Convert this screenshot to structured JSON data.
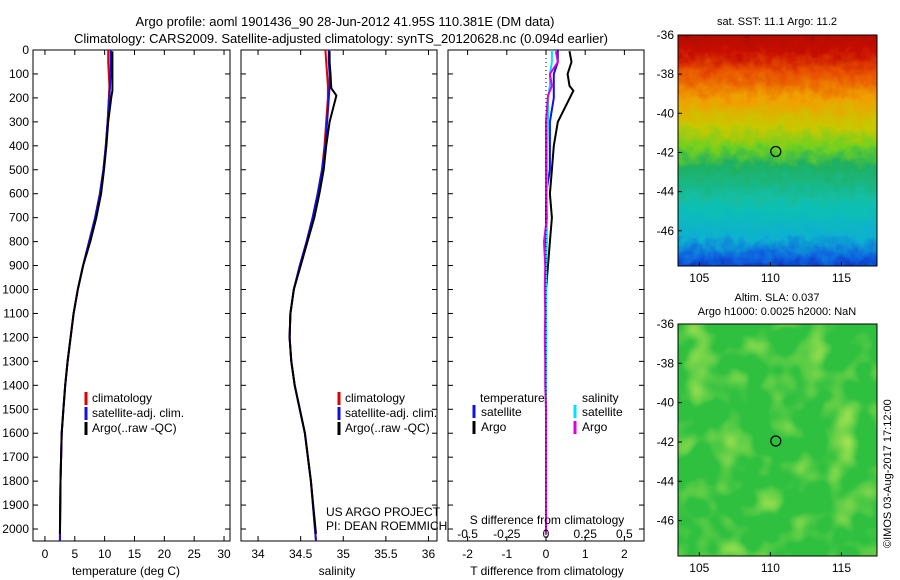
{
  "header": {
    "line1": "Argo profile: aoml 1901436_90 28-Jun-2012 41.95S 110.381E (DM data)",
    "line2": "Climatology: CARS2009. Satellite-adjusted climatology: synTS_20120628.nc (0.094d earlier)"
  },
  "colors": {
    "climatology": "#e00000",
    "satellite": "#1010e0",
    "argo": "#000000",
    "satellite_salinity": "#00e0ff",
    "argo_salinity": "#e000e0"
  },
  "chart_data": [
    {
      "type": "line",
      "panel": "temperature",
      "xlabel": "temperature (deg C)",
      "ylabel": "",
      "xlim": [
        -2,
        31
      ],
      "ylim": [
        2050,
        0
      ],
      "y_reversed": true,
      "xticks": [
        "0",
        "5",
        "10",
        "15",
        "20",
        "25",
        "30"
      ],
      "yticks": [
        "0",
        "100",
        "200",
        "300",
        "400",
        "500",
        "600",
        "700",
        "800",
        "900",
        "1000",
        "1100",
        "1200",
        "1300",
        "1400",
        "1500",
        "1600",
        "1700",
        "1800",
        "1900",
        "2000"
      ],
      "legend": {
        "position": "lower-center",
        "entries": [
          "climatology",
          "satellite-adj. clim.",
          "Argo(..raw -QC)"
        ]
      },
      "series": [
        {
          "name": "climatology",
          "color": "#e00000",
          "x": [
            10.6,
            10.6,
            10.7,
            10.8,
            10.7,
            10.5,
            10.2,
            9.8,
            9.2,
            8.4,
            7.4,
            6.4,
            5.5,
            4.8,
            4.3,
            3.8,
            3.4,
            3.1,
            2.8,
            2.6,
            2.5
          ],
          "y": [
            0,
            50,
            100,
            150,
            200,
            300,
            400,
            500,
            600,
            700,
            800,
            900,
            1000,
            1100,
            1200,
            1300,
            1400,
            1500,
            1600,
            1800,
            2050
          ]
        },
        {
          "name": "satellite-adj. clim.",
          "color": "#1010e0",
          "x": [
            11.0,
            11.0,
            11.0,
            10.9,
            10.8,
            10.5,
            10.2,
            9.8,
            9.2,
            8.4,
            7.4,
            6.4,
            5.5,
            4.8,
            4.3,
            3.8,
            3.4,
            3.1,
            2.8,
            2.6,
            2.5
          ],
          "y": [
            0,
            50,
            100,
            150,
            200,
            300,
            400,
            500,
            600,
            700,
            800,
            900,
            1000,
            1100,
            1200,
            1300,
            1400,
            1500,
            1600,
            1800,
            2050
          ]
        },
        {
          "name": "Argo(..raw -QC)",
          "color": "#000000",
          "x": [
            11.3,
            11.3,
            11.3,
            11.3,
            11.1,
            10.6,
            10.3,
            9.9,
            9.4,
            8.6,
            7.6,
            6.4,
            5.5,
            4.8,
            4.3,
            3.8,
            3.4,
            3.1,
            2.8,
            2.6,
            2.5
          ],
          "y": [
            5,
            50,
            100,
            170,
            200,
            300,
            400,
            500,
            600,
            700,
            800,
            900,
            1000,
            1100,
            1200,
            1300,
            1400,
            1500,
            1600,
            1800,
            2020
          ]
        }
      ]
    },
    {
      "type": "line",
      "panel": "salinity",
      "xlabel": "salinity",
      "ylabel": "",
      "xlim": [
        33.8,
        36.1
      ],
      "ylim": [
        2050,
        0
      ],
      "y_reversed": true,
      "xticks": [
        "34",
        "34.5",
        "35",
        "35.5",
        "36"
      ],
      "legend": {
        "position": "lower-right",
        "entries": [
          "climatology",
          "satellite-adj. clim.",
          "Argo(..raw -QC)"
        ]
      },
      "annotations": [
        "US ARGO PROJECT",
        "PI: DEAN ROEMMICH"
      ],
      "series": [
        {
          "name": "climatology",
          "color": "#e00000",
          "x": [
            34.79,
            34.8,
            34.81,
            34.82,
            34.82,
            34.8,
            34.78,
            34.75,
            34.7,
            34.64,
            34.57,
            34.49,
            34.42,
            34.38,
            34.37,
            34.39,
            34.43,
            34.49,
            34.55,
            34.62,
            34.68
          ],
          "y": [
            0,
            50,
            100,
            150,
            200,
            300,
            400,
            500,
            600,
            700,
            800,
            900,
            1000,
            1100,
            1200,
            1300,
            1400,
            1500,
            1600,
            1800,
            2050
          ]
        },
        {
          "name": "satellite-adj. clim.",
          "color": "#1010e0",
          "x": [
            34.83,
            34.83,
            34.84,
            34.84,
            34.83,
            34.81,
            34.79,
            34.75,
            34.7,
            34.64,
            34.57,
            34.49,
            34.42,
            34.38,
            34.37,
            34.39,
            34.43,
            34.49,
            34.55,
            34.62,
            34.68
          ],
          "y": [
            0,
            50,
            100,
            150,
            200,
            300,
            400,
            500,
            600,
            700,
            800,
            900,
            1000,
            1100,
            1200,
            1300,
            1400,
            1500,
            1600,
            1800,
            2050
          ]
        },
        {
          "name": "Argo(..raw -QC)",
          "color": "#000000",
          "x": [
            34.84,
            34.84,
            34.85,
            34.86,
            34.92,
            34.84,
            34.8,
            34.77,
            34.72,
            34.66,
            34.58,
            34.5,
            34.42,
            34.38,
            34.37,
            34.39,
            34.43,
            34.49,
            34.55,
            34.62,
            34.68
          ],
          "y": [
            5,
            50,
            100,
            160,
            190,
            300,
            400,
            500,
            600,
            700,
            800,
            900,
            1000,
            1100,
            1200,
            1300,
            1400,
            1500,
            1600,
            1800,
            2020
          ]
        }
      ]
    },
    {
      "type": "line",
      "panel": "difference",
      "xlabel": "T difference from climatology",
      "top_label": "S difference from climatology",
      "xlim": [
        -2.5,
        2.5
      ],
      "ylim": [
        2050,
        0
      ],
      "y_reversed": true,
      "xticks": [
        "-2",
        "-1",
        "0",
        "1",
        "2"
      ],
      "top_xticks": [
        "-0.5",
        "-0.25",
        "0",
        "0.25",
        "0.5"
      ],
      "legend": {
        "position": "lower-center",
        "temperature_title": "temperature",
        "salinity_title": "salinity",
        "entries": [
          "satellite",
          "Argo",
          "satellite",
          "Argo"
        ]
      },
      "series": [
        {
          "name": "satellite",
          "group": "temperature",
          "color": "#1010e0",
          "x": [
            0.3,
            0.3,
            0.2,
            0.2,
            0.2,
            0.1,
            0.1,
            0.1,
            0.0,
            0.0,
            0.0,
            0.0,
            0.0,
            0.0,
            0.0,
            0.0,
            0.0,
            0.0,
            0.0,
            0.0
          ],
          "y": [
            0,
            50,
            100,
            150,
            200,
            300,
            400,
            500,
            600,
            700,
            800,
            900,
            1000,
            1100,
            1200,
            1300,
            1400,
            1500,
            1800,
            2020
          ]
        },
        {
          "name": "Argo",
          "group": "temperature",
          "color": "#000000",
          "x": [
            0.6,
            0.65,
            0.55,
            0.6,
            0.7,
            0.3,
            0.2,
            0.15,
            0.1,
            0.15,
            0.1,
            0.05,
            0.0,
            0.0,
            0.0,
            0.0,
            0.0,
            0.0,
            0.0,
            0.0
          ],
          "y": [
            5,
            50,
            100,
            150,
            170,
            300,
            400,
            500,
            600,
            700,
            800,
            900,
            1000,
            1100,
            1200,
            1300,
            1400,
            1500,
            1800,
            2020
          ]
        },
        {
          "name": "satellite",
          "group": "salinity",
          "color": "#00e0ff",
          "x": [
            0.15,
            0.15,
            0.1,
            0.1,
            0.05,
            0.05,
            0.03,
            0.03,
            0.02,
            0.02,
            0.02,
            0.0,
            0.0,
            0.0,
            0.0,
            0.0,
            0.0,
            0.0,
            0.0,
            0.0
          ],
          "y": [
            0,
            50,
            100,
            150,
            200,
            300,
            400,
            500,
            600,
            700,
            800,
            900,
            1000,
            1100,
            1200,
            1300,
            1400,
            1500,
            1800,
            2020
          ]
        },
        {
          "name": "Argo",
          "group": "salinity",
          "color": "#e000e0",
          "x": [
            0.25,
            0.3,
            0.1,
            0.15,
            0.05,
            0.0,
            0.0,
            0.0,
            0.0,
            0.02,
            -0.05,
            -0.02,
            -0.03,
            -0.02,
            -0.03,
            -0.02,
            -0.02,
            0.0,
            0.0,
            0.0
          ],
          "y": [
            5,
            50,
            100,
            150,
            190,
            300,
            400,
            500,
            600,
            700,
            800,
            900,
            1000,
            1100,
            1200,
            1300,
            1400,
            1500,
            1800,
            2020
          ]
        }
      ]
    },
    {
      "type": "heatmap",
      "panel": "sst-map",
      "title": "sat. SST: 11.1  Argo: 11.2",
      "xlim": [
        103.5,
        117.5
      ],
      "ylim": [
        -47.8,
        -36
      ],
      "xticks": [
        "105",
        "110",
        "115"
      ],
      "yticks": [
        "-36",
        "-38",
        "-40",
        "-42",
        "-44",
        "-46"
      ],
      "marker": {
        "lon": 110.381,
        "lat": -41.95
      }
    },
    {
      "type": "heatmap",
      "panel": "sla-map",
      "title_line1": "Altim. SLA: 0.037",
      "title_line2": "Argo h1000: 0.0025 h2000: NaN",
      "xlim": [
        103.5,
        117.5
      ],
      "ylim": [
        -47.8,
        -36
      ],
      "xticks": [
        "105",
        "110",
        "115"
      ],
      "yticks": [
        "-36",
        "-38",
        "-40",
        "-42",
        "-44",
        "-46"
      ],
      "marker": {
        "lon": 110.381,
        "lat": -41.95
      }
    }
  ],
  "credit": "©IMOS 03-Aug-2017 17:12:00"
}
